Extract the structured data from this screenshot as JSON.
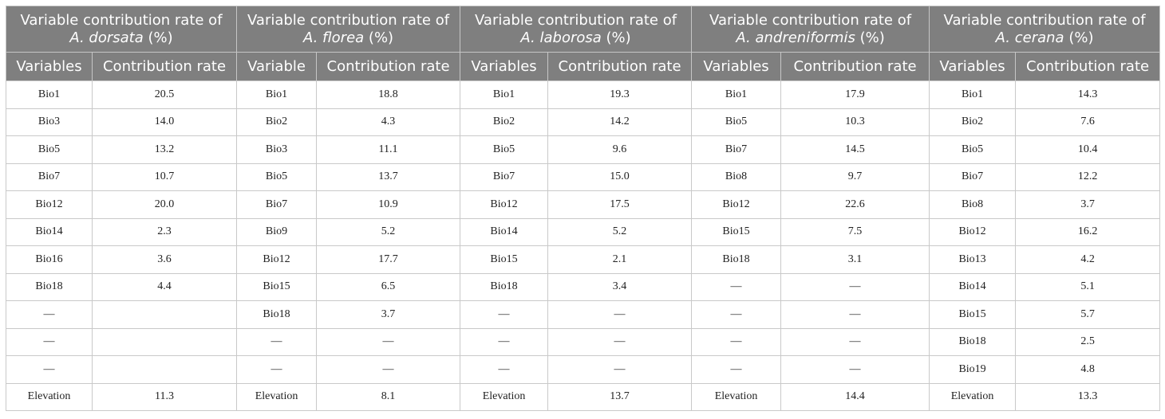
{
  "groups": [
    {
      "title_prefix": "Variable contribution rate of",
      "species": "A. dorsata",
      "title_suffix": " (%)",
      "col1": "Variables",
      "col2": "Contribution rate",
      "rows": [
        [
          "Bio1",
          "20.5"
        ],
        [
          "Bio3",
          "14.0"
        ],
        [
          "Bio5",
          "13.2"
        ],
        [
          "Bio7",
          "10.7"
        ],
        [
          "Bio12",
          "20.0"
        ],
        [
          "Bio14",
          "2.3"
        ],
        [
          "Bio16",
          "3.6"
        ],
        [
          "Bio18",
          "4.4"
        ],
        [
          "—",
          ""
        ],
        [
          "—",
          ""
        ],
        [
          "—",
          ""
        ],
        [
          "Elevation",
          "11.3"
        ]
      ]
    },
    {
      "title_prefix": "Variable contribution rate of",
      "species": "A. florea",
      "title_suffix": " (%)",
      "col1": "Variable",
      "col2": "Contribution rate",
      "rows": [
        [
          "Bio1",
          "18.8"
        ],
        [
          "Bio2",
          "4.3"
        ],
        [
          "Bio3",
          "11.1"
        ],
        [
          "Bio5",
          "13.7"
        ],
        [
          "Bio7",
          "10.9"
        ],
        [
          "Bio9",
          "5.2"
        ],
        [
          "Bio12",
          "17.7"
        ],
        [
          "Bio15",
          "6.5"
        ],
        [
          "Bio18",
          "3.7"
        ],
        [
          "—",
          "—"
        ],
        [
          "—",
          "—"
        ],
        [
          "Elevation",
          "8.1"
        ]
      ]
    },
    {
      "title_prefix": "Variable contribution rate of",
      "species": "A. laborosa",
      "title_suffix": " (%)",
      "col1": "Variables",
      "col2": "Contribution rate",
      "rows": [
        [
          "Bio1",
          "19.3"
        ],
        [
          "Bio2",
          "14.2"
        ],
        [
          "Bio5",
          "9.6"
        ],
        [
          "Bio7",
          "15.0"
        ],
        [
          "Bio12",
          "17.5"
        ],
        [
          "Bio14",
          "5.2"
        ],
        [
          "Bio15",
          "2.1"
        ],
        [
          "Bio18",
          "3.4"
        ],
        [
          "—",
          "—"
        ],
        [
          "—",
          "—"
        ],
        [
          "—",
          "—"
        ],
        [
          "Elevation",
          "13.7"
        ]
      ]
    },
    {
      "title_prefix": "Variable contribution rate of",
      "species": "A. andreniformis",
      "title_suffix": " (%)",
      "col1": "Variables",
      "col2": "Contribution rate",
      "rows": [
        [
          "Bio1",
          "17.9"
        ],
        [
          "Bio5",
          "10.3"
        ],
        [
          "Bio7",
          "14.5"
        ],
        [
          "Bio8",
          "9.7"
        ],
        [
          "Bio12",
          "22.6"
        ],
        [
          "Bio15",
          "7.5"
        ],
        [
          "Bio18",
          "3.1"
        ],
        [
          "—",
          "—"
        ],
        [
          "—",
          "—"
        ],
        [
          "—",
          "—"
        ],
        [
          "—",
          "—"
        ],
        [
          "Elevation",
          "14.4"
        ]
      ]
    },
    {
      "title_prefix": "Variable contribution rate of",
      "species": "A. cerana",
      "title_suffix": " (%)",
      "col1": "Variables",
      "col2": "Contribution rate",
      "rows": [
        [
          "Bio1",
          "14.3"
        ],
        [
          "Bio2",
          "7.6"
        ],
        [
          "Bio5",
          "10.4"
        ],
        [
          "Bio7",
          "12.2"
        ],
        [
          "Bio8",
          "3.7"
        ],
        [
          "Bio12",
          "16.2"
        ],
        [
          "Bio13",
          "4.2"
        ],
        [
          "Bio14",
          "5.1"
        ],
        [
          "Bio15",
          "5.7"
        ],
        [
          "Bio18",
          "2.5"
        ],
        [
          "Bio19",
          "4.8"
        ],
        [
          "Elevation",
          "13.3"
        ]
      ]
    }
  ]
}
